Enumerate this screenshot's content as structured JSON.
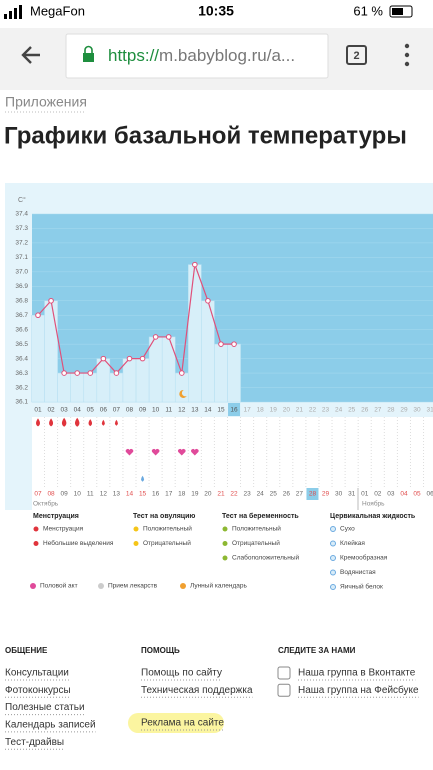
{
  "status_bar": {
    "carrier": "MegaFon",
    "time": "10:35",
    "battery": "61 %"
  },
  "browser": {
    "url_scheme": "https://",
    "url_rest": "m.babyblog.ru/a...",
    "tabs": "2"
  },
  "breadcrumb": "Приложения",
  "title": "Графики базальной температуры",
  "chart": {
    "type": "line",
    "unit": "C°",
    "ylim": [
      36.1,
      37.4
    ],
    "yticks": [
      36.1,
      36.2,
      36.3,
      36.4,
      36.5,
      36.6,
      36.7,
      36.8,
      36.9,
      {
        "value": 37,
        "label": "37.0"
      },
      37.1,
      37.2,
      37.3,
      37.4
    ],
    "days": [
      "01",
      "02",
      "03",
      "04",
      "05",
      "06",
      "07",
      "08",
      "09",
      "10",
      "11",
      "12",
      "13",
      "14",
      "15",
      "16",
      "17",
      "18",
      "19",
      "20",
      "21",
      "22",
      "23",
      "24",
      "25",
      "26",
      "27",
      "28",
      "29",
      "30",
      "31"
    ],
    "values": [
      36.7,
      36.8,
      36.3,
      36.3,
      36.3,
      36.4,
      36.3,
      36.4,
      36.4,
      36.55,
      36.55,
      36.3,
      37.05,
      36.8,
      36.5,
      36.5,
      null,
      null,
      null,
      null,
      null,
      null,
      null,
      null,
      null,
      null,
      null,
      null,
      null,
      null,
      null
    ],
    "dates": [
      "07",
      "08",
      "09",
      "10",
      "11",
      "12",
      "13",
      "14",
      "15",
      "16",
      "17",
      "18",
      "19",
      "20",
      "21",
      "22",
      "23",
      "24",
      "25",
      "26",
      "27",
      "28",
      "29",
      "30",
      "31",
      "01",
      "02",
      "03",
      "04",
      "05",
      "06"
    ],
    "months": [
      "Октябрь",
      "Ноябрь"
    ],
    "line_color": "#e0507a"
  },
  "legend": [
    {
      "title": "Менструация",
      "items": [
        "Менструация",
        "Небольшие выделения"
      ]
    },
    {
      "title": "Тест на овуляцию",
      "items": [
        "Положительный",
        "Отрицательный"
      ]
    },
    {
      "title": "Тест на беременность",
      "items": [
        "Положительный",
        "Отрицательный",
        "Слабоположительный"
      ]
    },
    {
      "title": "Цервикальная жидкость",
      "items": [
        "Сухо",
        "Клейкая",
        "Кремообразная",
        "Водянистая",
        "Яичный белок"
      ]
    }
  ],
  "legend_extra": [
    "Половой акт",
    "Прием лекарств",
    "Лунный календарь"
  ],
  "footer": [
    {
      "title": "ОБЩЕНИЕ",
      "links": [
        "Консультации",
        "Фотоконкурсы",
        "Полезные статьи",
        "Календарь записей",
        "Тест-драйвы"
      ]
    },
    {
      "title": "ПОМОЩЬ",
      "links": [
        "Помощь по сайту",
        "Техническая поддержка",
        "Реклама на сайте"
      ]
    },
    {
      "title": "СЛЕДИТЕ ЗА НАМИ",
      "links": [
        "Наша группа в Вконтакте",
        "Наша группа на Фейсбуке"
      ]
    }
  ]
}
